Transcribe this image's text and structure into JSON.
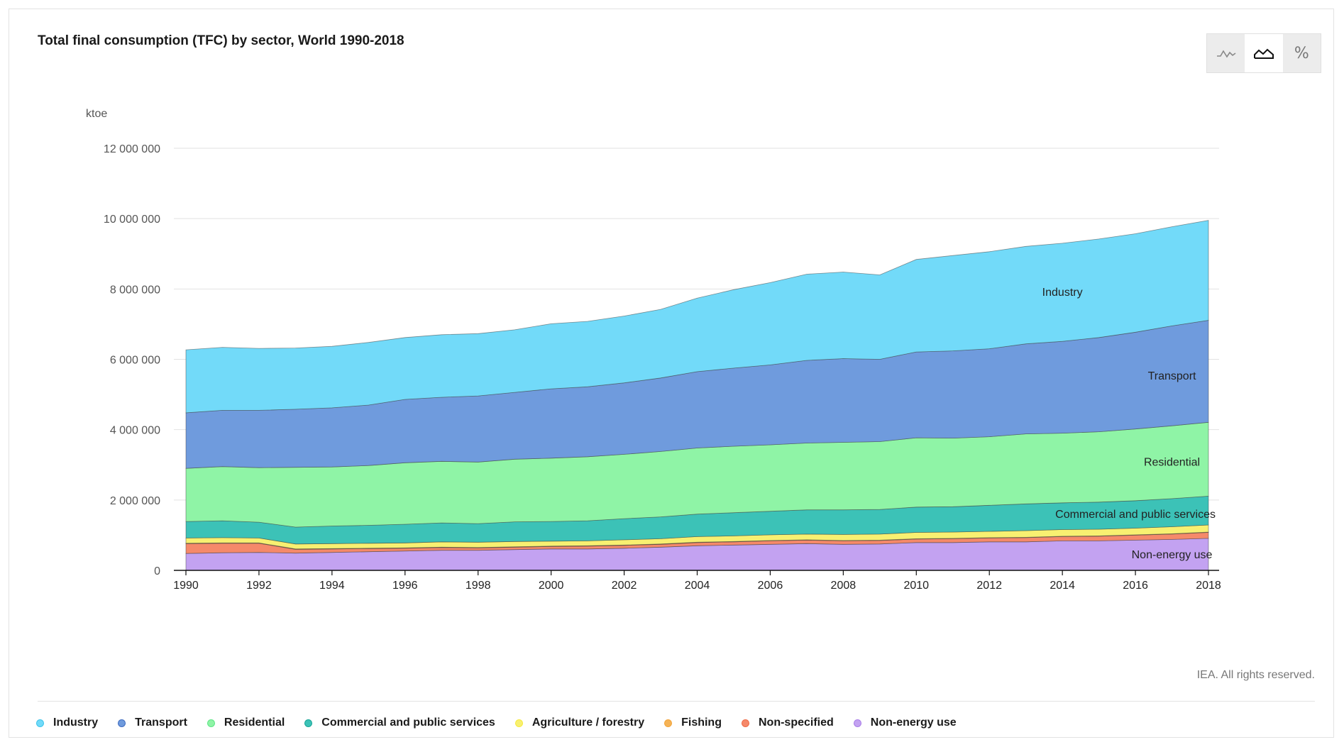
{
  "title": "Total final consumption (TFC) by sector, World 1990-2018",
  "toolbar": {
    "line_icon": "line-chart-icon",
    "area_icon": "area-chart-icon",
    "percent_label": "%"
  },
  "credit": "IEA. All rights reserved.",
  "colors": {
    "Industry": "#72daf9",
    "Transport": "#6f9bdd",
    "Residential": "#8ff4a6",
    "Commercial and public services": "#3cc2b7",
    "Agriculture / forestry": "#f8f071",
    "Fishing": "#f5b356",
    "Non-specified": "#f5896a",
    "Non-energy use": "#c3a2f1",
    "legend_Industry": "#3dc4ea",
    "legend_Transport": "#3f6cc0",
    "legend_Residential": "#5ee586",
    "legend_Commercial and public services": "#17a596",
    "legend_Agriculture / forestry": "#f6ea3c",
    "legend_Fishing": "#f3a53a",
    "legend_Non-specified": "#ef6a45",
    "legend_Non-energy use": "#a97de8"
  },
  "chart_data": {
    "type": "area",
    "stacked": true,
    "ylabel": "ktoe",
    "ylim": [
      0,
      12000000
    ],
    "yticks": [
      0,
      2000000,
      4000000,
      6000000,
      8000000,
      10000000,
      12000000
    ],
    "ytick_labels": [
      "0",
      "2 000 000",
      "4 000 000",
      "6 000 000",
      "8 000 000",
      "10 000 000",
      "12 000 000"
    ],
    "grid": true,
    "x": [
      1990,
      1991,
      1992,
      1993,
      1994,
      1995,
      1996,
      1997,
      1998,
      1999,
      2000,
      2001,
      2002,
      2003,
      2004,
      2005,
      2006,
      2007,
      2008,
      2009,
      2010,
      2011,
      2012,
      2013,
      2014,
      2015,
      2016,
      2017,
      2018
    ],
    "xticks": [
      1990,
      1992,
      1994,
      1996,
      1998,
      2000,
      2002,
      2004,
      2006,
      2008,
      2010,
      2012,
      2014,
      2016,
      2018
    ],
    "series": [
      {
        "name": "Non-energy use",
        "values": [
          480000,
          500000,
          510000,
          490000,
          510000,
          530000,
          550000,
          570000,
          570000,
          590000,
          610000,
          610000,
          630000,
          660000,
          700000,
          720000,
          740000,
          760000,
          740000,
          750000,
          790000,
          790000,
          810000,
          810000,
          840000,
          840000,
          860000,
          880000,
          910000
        ]
      },
      {
        "name": "Non-specified",
        "values": [
          280000,
          270000,
          260000,
          110000,
          100000,
          90000,
          80000,
          80000,
          70000,
          70000,
          70000,
          80000,
          80000,
          80000,
          90000,
          90000,
          100000,
          100000,
          100000,
          100000,
          100000,
          110000,
          110000,
          120000,
          120000,
          130000,
          140000,
          150000,
          170000
        ]
      },
      {
        "name": "Fishing",
        "values": [
          10000,
          10000,
          10000,
          10000,
          10000,
          10000,
          10000,
          10000,
          10000,
          10000,
          10000,
          10000,
          10000,
          10000,
          10000,
          10000,
          10000,
          10000,
          10000,
          10000,
          10000,
          10000,
          10000,
          10000,
          10000,
          10000,
          10000,
          10000,
          10000
        ]
      },
      {
        "name": "Agriculture / forestry",
        "values": [
          150000,
          150000,
          140000,
          140000,
          140000,
          140000,
          140000,
          150000,
          150000,
          150000,
          140000,
          140000,
          150000,
          150000,
          160000,
          160000,
          160000,
          160000,
          170000,
          170000,
          180000,
          180000,
          180000,
          190000,
          190000,
          190000,
          190000,
          200000,
          200000
        ]
      },
      {
        "name": "Commercial and public services",
        "values": [
          470000,
          480000,
          450000,
          480000,
          500000,
          510000,
          530000,
          540000,
          530000,
          560000,
          560000,
          570000,
          600000,
          620000,
          640000,
          660000,
          670000,
          690000,
          700000,
          700000,
          720000,
          720000,
          740000,
          760000,
          760000,
          770000,
          780000,
          800000,
          820000
        ]
      },
      {
        "name": "Residential",
        "values": [
          1510000,
          1540000,
          1550000,
          1700000,
          1680000,
          1700000,
          1750000,
          1750000,
          1750000,
          1780000,
          1800000,
          1820000,
          1830000,
          1860000,
          1880000,
          1890000,
          1890000,
          1900000,
          1920000,
          1930000,
          1970000,
          1950000,
          1950000,
          1990000,
          1980000,
          2000000,
          2040000,
          2070000,
          2100000
        ]
      },
      {
        "name": "Transport",
        "values": [
          1580000,
          1600000,
          1630000,
          1650000,
          1680000,
          1720000,
          1800000,
          1820000,
          1880000,
          1900000,
          1970000,
          1990000,
          2030000,
          2090000,
          2170000,
          2220000,
          2270000,
          2350000,
          2380000,
          2340000,
          2440000,
          2480000,
          2500000,
          2560000,
          2610000,
          2680000,
          2750000,
          2840000,
          2900000
        ]
      },
      {
        "name": "Industry",
        "values": [
          1790000,
          1790000,
          1760000,
          1740000,
          1750000,
          1780000,
          1760000,
          1780000,
          1770000,
          1780000,
          1850000,
          1860000,
          1900000,
          1950000,
          2090000,
          2230000,
          2340000,
          2450000,
          2460000,
          2400000,
          2630000,
          2710000,
          2760000,
          2770000,
          2790000,
          2800000,
          2800000,
          2820000,
          2840000
        ]
      }
    ],
    "area_labels": [
      {
        "series": "Industry",
        "text": "Industry"
      },
      {
        "series": "Transport",
        "text": "Transport"
      },
      {
        "series": "Residential",
        "text": "Residential"
      },
      {
        "series": "Commercial and public services",
        "text": "Commercial and public services"
      },
      {
        "series": "Non-energy use",
        "text": "Non-energy use"
      }
    ],
    "legend": [
      "Industry",
      "Transport",
      "Residential",
      "Commercial and public services",
      "Agriculture / forestry",
      "Fishing",
      "Non-specified",
      "Non-energy use"
    ],
    "legend_position": "bottom-left"
  }
}
